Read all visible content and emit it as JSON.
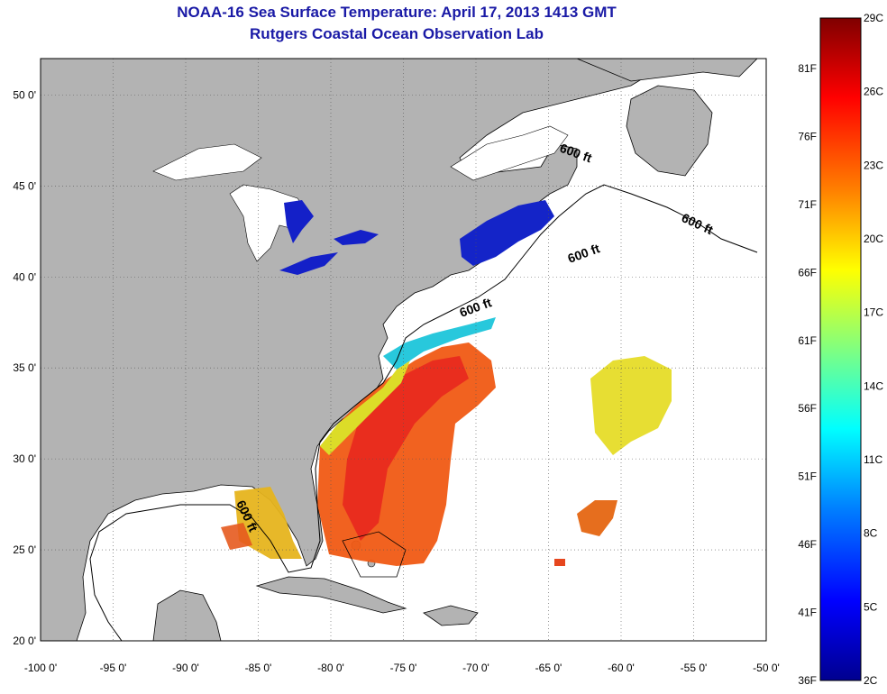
{
  "header": {
    "title": "NOAA-16 Sea Surface Temperature:  April 17, 2013 1413 GMT",
    "subtitle": "Rutgers Coastal Ocean Observation Lab"
  },
  "map": {
    "lon_range": [
      -100,
      -50
    ],
    "lat_range": [
      20,
      52
    ],
    "lon_ticks": [
      "-100 0'",
      "-95 0'",
      "-90 0'",
      "-85 0'",
      "-80 0'",
      "-75 0'",
      "-70 0'",
      "-65 0'",
      "-60 0'",
      "-55 0'",
      "-50 0'"
    ],
    "lat_ticks": [
      "50 0'",
      "45 0'",
      "40 0'",
      "35 0'",
      "30 0'",
      "25 0'",
      "20 0'"
    ],
    "contour_labels": [
      "600 ft",
      "600 ft",
      "600 ft",
      "600 ft",
      "600 ft"
    ],
    "land_color": "#b3b3b3",
    "grid": "dotted"
  },
  "colorbar": {
    "celsius": [
      "29C",
      "26C",
      "23C",
      "20C",
      "17C",
      "14C",
      "11C",
      "8C",
      "5C",
      "2C"
    ],
    "fahrenheit": [
      "81F",
      "76F",
      "71F",
      "66F",
      "61F",
      "56F",
      "51F",
      "46F",
      "41F",
      "36F"
    ],
    "colors": [
      "#7f0000",
      "#ff0000",
      "#ff8000",
      "#ffff00",
      "#80ff80",
      "#00ffff",
      "#0080ff",
      "#0000ff",
      "#00008f"
    ]
  }
}
